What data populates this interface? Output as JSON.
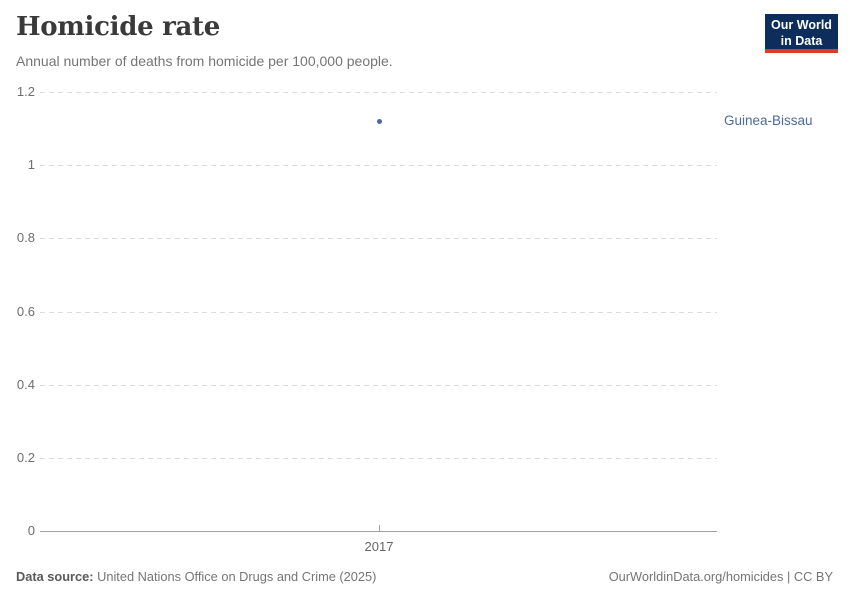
{
  "header": {
    "title": "Homicide rate",
    "subtitle": "Annual number of deaths from homicide per 100,000 people.",
    "logo": {
      "line1": "Our World",
      "line2": "in Data",
      "bg_color": "#0d2e5c",
      "accent_color": "#dc3c22",
      "text_color": "#ffffff"
    }
  },
  "chart_data": {
    "type": "scatter",
    "title": "Homicide rate",
    "subtitle": "Annual number of deaths from homicide per 100,000 people.",
    "categories": [
      2017
    ],
    "x_ticks": [
      "2017"
    ],
    "y_ticks": [
      "1.2",
      "1",
      "0.8",
      "0.6",
      "0.4",
      "0.2",
      "0"
    ],
    "ylim": [
      0,
      1.2
    ],
    "grid": "horizontal-dashed",
    "legend_position": "inline-right-label",
    "series": [
      {
        "name": "Guinea-Bissau",
        "color": "#4c6a9c",
        "points": [
          {
            "x": 2017,
            "y": 1.12
          }
        ]
      }
    ],
    "colors": {
      "gridline": "#dcdcdc",
      "axis_line": "#a0a0a0",
      "y_tick_label": "#6e6e6e",
      "x_tick_label": "#666666"
    }
  },
  "footer": {
    "source_label": "Data source:",
    "source_value": "United Nations Office on Drugs and Crime (2025)",
    "credit": "OurWorldinData.org/homicides | CC BY"
  }
}
